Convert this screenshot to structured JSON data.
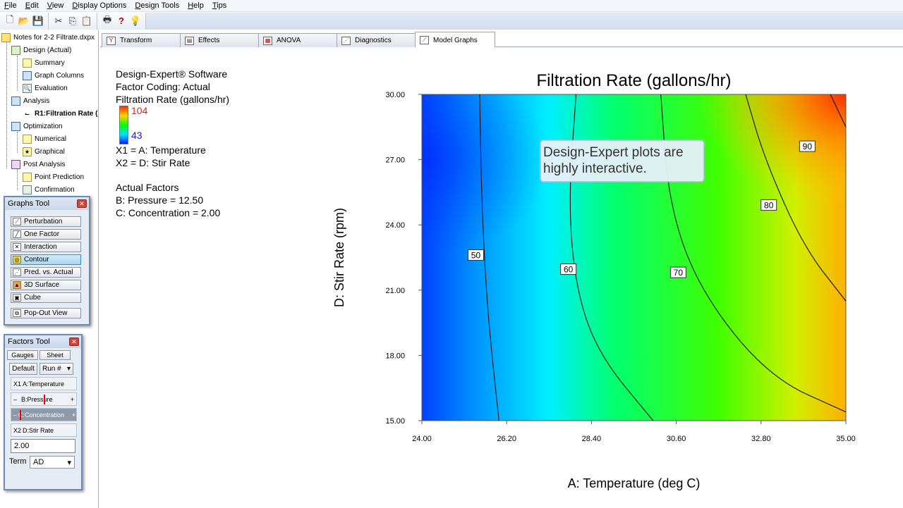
{
  "menu": [
    "File",
    "Edit",
    "View",
    "Display Options",
    "Design Tools",
    "Help",
    "Tips"
  ],
  "toolbar_icons": [
    "new-file-icon",
    "open-folder-icon",
    "save-icon",
    "cut-icon",
    "copy-icon",
    "paste-icon",
    "print-icon",
    "help-icon",
    "tip-bulb-icon"
  ],
  "tree": {
    "root": "Notes for 2-2 Filtrate.dxpx",
    "design": "Design (Actual)",
    "summary": "Summary",
    "graph_columns": "Graph Columns",
    "evaluation": "Evaluation",
    "analysis": "Analysis",
    "r1": "R1:Filtration Rate (",
    "optimization": "Optimization",
    "numerical": "Numerical",
    "graphical": "Graphical",
    "post_analysis": "Post Analysis",
    "point_prediction": "Point Prediction",
    "confirmation": "Confirmation"
  },
  "graphs_tool": {
    "title": "Graphs Tool",
    "buttons": [
      "Perturbation",
      "One Factor",
      "Interaction",
      "Contour",
      "Pred. vs. Actual",
      "3D Surface",
      "Cube"
    ],
    "selected": "Contour",
    "popout": "Pop-Out View"
  },
  "factors_tool": {
    "title": "Factors Tool",
    "tab_gauges": "Gauges",
    "tab_sheet": "Sheet",
    "default_btn": "Default",
    "run_select": "Run #",
    "rows": [
      {
        "tag": "X1",
        "label": "A:Temperature"
      },
      {
        "tag": "",
        "label": "B:Pressure"
      },
      {
        "tag": "",
        "label": "C:Concentration"
      },
      {
        "tag": "X2",
        "label": "D:Stir Rate"
      }
    ],
    "value": "2.00",
    "term_label": "Term",
    "term_value": "AD"
  },
  "tabs": [
    "Transform",
    "Effects",
    "ANOVA",
    "Diagnostics",
    "Model Graphs"
  ],
  "active_tab": "Model Graphs",
  "legend": {
    "line1": "Design-Expert® Software",
    "line2": "Factor Coding: Actual",
    "line3": "Filtration Rate (gallons/hr)",
    "high": "104",
    "low": "43",
    "x1": "X1 = A: Temperature",
    "x2": "X2 = D: Stir Rate",
    "actual_factors": "Actual Factors",
    "b": "B: Pressure = 12.50",
    "c": "C: Concentration = 2.00"
  },
  "callout": {
    "line1": "Design-Expert plots are",
    "line2": "highly interactive."
  },
  "chart_data": {
    "type": "contour",
    "title": "Filtration Rate (gallons/hr)",
    "xlabel": "A: Temperature (deg C)",
    "ylabel": "D: Stir Rate (rpm)",
    "xlim": [
      24,
      35
    ],
    "ylim": [
      15,
      30
    ],
    "x_ticks": [
      "24.00",
      "26.20",
      "28.40",
      "30.60",
      "32.80",
      "35.00"
    ],
    "y_ticks": [
      "15.00",
      "18.00",
      "21.00",
      "24.00",
      "27.00",
      "30.00"
    ],
    "color_range": [
      43,
      104
    ],
    "contours": [
      {
        "level": 50,
        "points": [
          [
            25.5,
            30
          ],
          [
            25.55,
            25
          ],
          [
            25.7,
            20
          ],
          [
            26.0,
            15
          ]
        ]
      },
      {
        "level": 60,
        "points": [
          [
            28.0,
            30
          ],
          [
            27.8,
            25
          ],
          [
            28.0,
            21
          ],
          [
            28.6,
            18
          ],
          [
            30.0,
            15
          ]
        ]
      },
      {
        "level": 70,
        "points": [
          [
            30.2,
            30
          ],
          [
            30.4,
            25
          ],
          [
            31.2,
            21
          ],
          [
            33.0,
            17
          ],
          [
            35.0,
            15.4
          ]
        ]
      },
      {
        "level": 80,
        "points": [
          [
            32.4,
            30
          ],
          [
            32.9,
            27
          ],
          [
            33.9,
            23
          ],
          [
            35.0,
            20.5
          ]
        ]
      },
      {
        "level": 90,
        "points": [
          [
            34.6,
            30
          ],
          [
            35.0,
            28.5
          ]
        ]
      }
    ],
    "contour_labels": [
      {
        "text": "50",
        "x": 25.4,
        "y": 22.6
      },
      {
        "text": "60",
        "x": 27.8,
        "y": 21.95
      },
      {
        "text": "70",
        "x": 30.65,
        "y": 21.8
      },
      {
        "text": "80",
        "x": 33.0,
        "y": 24.9
      },
      {
        "text": "90",
        "x": 34.0,
        "y": 27.6
      }
    ]
  }
}
